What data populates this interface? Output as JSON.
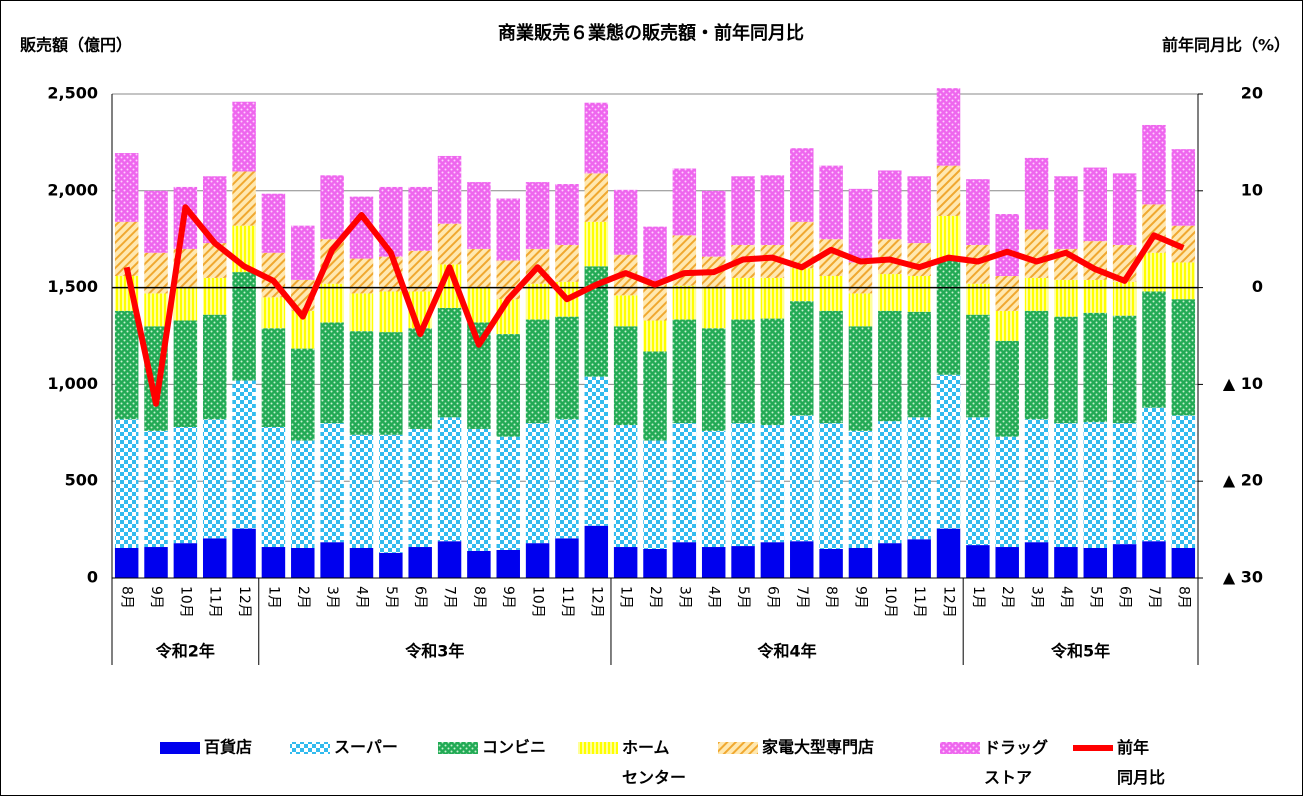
{
  "chart_data": {
    "type": "stacked-bar-line",
    "title": "商業販売６業態の販売額・前年同月比",
    "y_label": "販売額（億円）",
    "y2_label": "前年同月比（%）",
    "categories": [
      "8月",
      "9月",
      "10月",
      "11月",
      "12月",
      "1月",
      "2月",
      "3月",
      "4月",
      "5月",
      "6月",
      "7月",
      "8月",
      "9月",
      "10月",
      "11月",
      "12月",
      "1月",
      "2月",
      "3月",
      "4月",
      "5月",
      "6月",
      "7月",
      "8月",
      "9月",
      "10月",
      "11月",
      "12月",
      "1月",
      "2月",
      "3月",
      "4月",
      "5月",
      "6月",
      "7月",
      "8月"
    ],
    "groups": [
      {
        "label": "令和2年",
        "span": 5
      },
      {
        "label": "令和3年",
        "span": 12
      },
      {
        "label": "令和4年",
        "span": 12
      },
      {
        "label": "令和5年",
        "span": 8
      }
    ],
    "ylim": [
      0,
      2500
    ],
    "yticks": [
      0,
      500,
      {
        "value": 1000,
        "label": "1,000"
      },
      {
        "value": 1500,
        "label": "1,500"
      },
      {
        "value": 2000,
        "label": "2,000"
      },
      {
        "value": 2500,
        "label": "2,500"
      }
    ],
    "y2lim": [
      -30,
      20
    ],
    "y2ticks": [
      20,
      10,
      0,
      {
        "value": -10,
        "label": "▲ 10"
      },
      {
        "value": -20,
        "label": "▲ 20"
      },
      {
        "value": -30,
        "label": "▲ 30"
      }
    ],
    "grid": true,
    "legend": "bottom",
    "series": [
      {
        "name": "百貨店",
        "color": "#0000ee",
        "pattern": "solid",
        "values": [
          155,
          160,
          180,
          205,
          255,
          160,
          155,
          185,
          155,
          130,
          160,
          190,
          140,
          145,
          180,
          205,
          270,
          160,
          150,
          185,
          160,
          165,
          185,
          190,
          150,
          155,
          180,
          200,
          255,
          170,
          160,
          185,
          160,
          155,
          175,
          190,
          155
        ]
      },
      {
        "name": "スーパー",
        "color": "#33bbee",
        "pattern": "checker",
        "values": [
          665,
          600,
          600,
          615,
          765,
          620,
          555,
          615,
          585,
          610,
          610,
          640,
          630,
          585,
          620,
          615,
          770,
          630,
          560,
          615,
          600,
          635,
          605,
          650,
          650,
          605,
          630,
          630,
          795,
          660,
          570,
          635,
          640,
          650,
          625,
          690,
          685
        ]
      },
      {
        "name": "コンビニ",
        "color": "#22aa55",
        "pattern": "dots",
        "values": [
          560,
          540,
          550,
          540,
          560,
          510,
          475,
          520,
          535,
          530,
          520,
          565,
          550,
          530,
          535,
          530,
          570,
          510,
          460,
          535,
          530,
          535,
          550,
          590,
          580,
          540,
          570,
          545,
          590,
          530,
          495,
          560,
          550,
          565,
          555,
          600,
          600
        ]
      },
      {
        "name": "ホーム\nセンター",
        "color": "#ffff33",
        "pattern": "vlines",
        "values": [
          180,
          170,
          170,
          190,
          240,
          160,
          195,
          200,
          195,
          210,
          190,
          225,
          180,
          180,
          185,
          180,
          230,
          160,
          160,
          175,
          210,
          215,
          210,
          170,
          180,
          170,
          190,
          185,
          230,
          160,
          155,
          170,
          190,
          170,
          175,
          200,
          190
        ]
      },
      {
        "name": "家電大型専門店",
        "color": "#f0a830",
        "pattern": "diag",
        "values": [
          280,
          210,
          200,
          180,
          280,
          230,
          160,
          230,
          180,
          180,
          210,
          210,
          200,
          200,
          180,
          190,
          250,
          210,
          190,
          260,
          160,
          170,
          170,
          240,
          190,
          160,
          180,
          170,
          260,
          200,
          180,
          250,
          160,
          200,
          190,
          250,
          190
        ]
      },
      {
        "name": "ドラッグ\nストア",
        "color": "#ee66ee",
        "pattern": "pink",
        "values": [
          355,
          320,
          320,
          345,
          360,
          305,
          280,
          330,
          320,
          360,
          330,
          350,
          345,
          320,
          345,
          315,
          365,
          335,
          295,
          345,
          340,
          355,
          360,
          380,
          380,
          380,
          355,
          345,
          400,
          340,
          320,
          370,
          375,
          380,
          370,
          410,
          395
        ]
      },
      {
        "name": "前年\n同月比",
        "color": "#ff0000",
        "type": "line",
        "axis": "y2",
        "values": [
          2.1,
          -12,
          8.3,
          4.6,
          2.2,
          0.7,
          -3,
          3.9,
          7.5,
          3.6,
          -4.8,
          2.1,
          -5.9,
          -1.2,
          2.1,
          -1.2,
          0.3,
          1.5,
          0.3,
          1.5,
          1.6,
          2.9,
          3.1,
          2.1,
          3.9,
          2.7,
          2.9,
          2.1,
          3.1,
          2.7,
          3.7,
          2.7,
          3.6,
          1.9,
          0.7,
          5.4,
          4.1
        ]
      }
    ]
  }
}
